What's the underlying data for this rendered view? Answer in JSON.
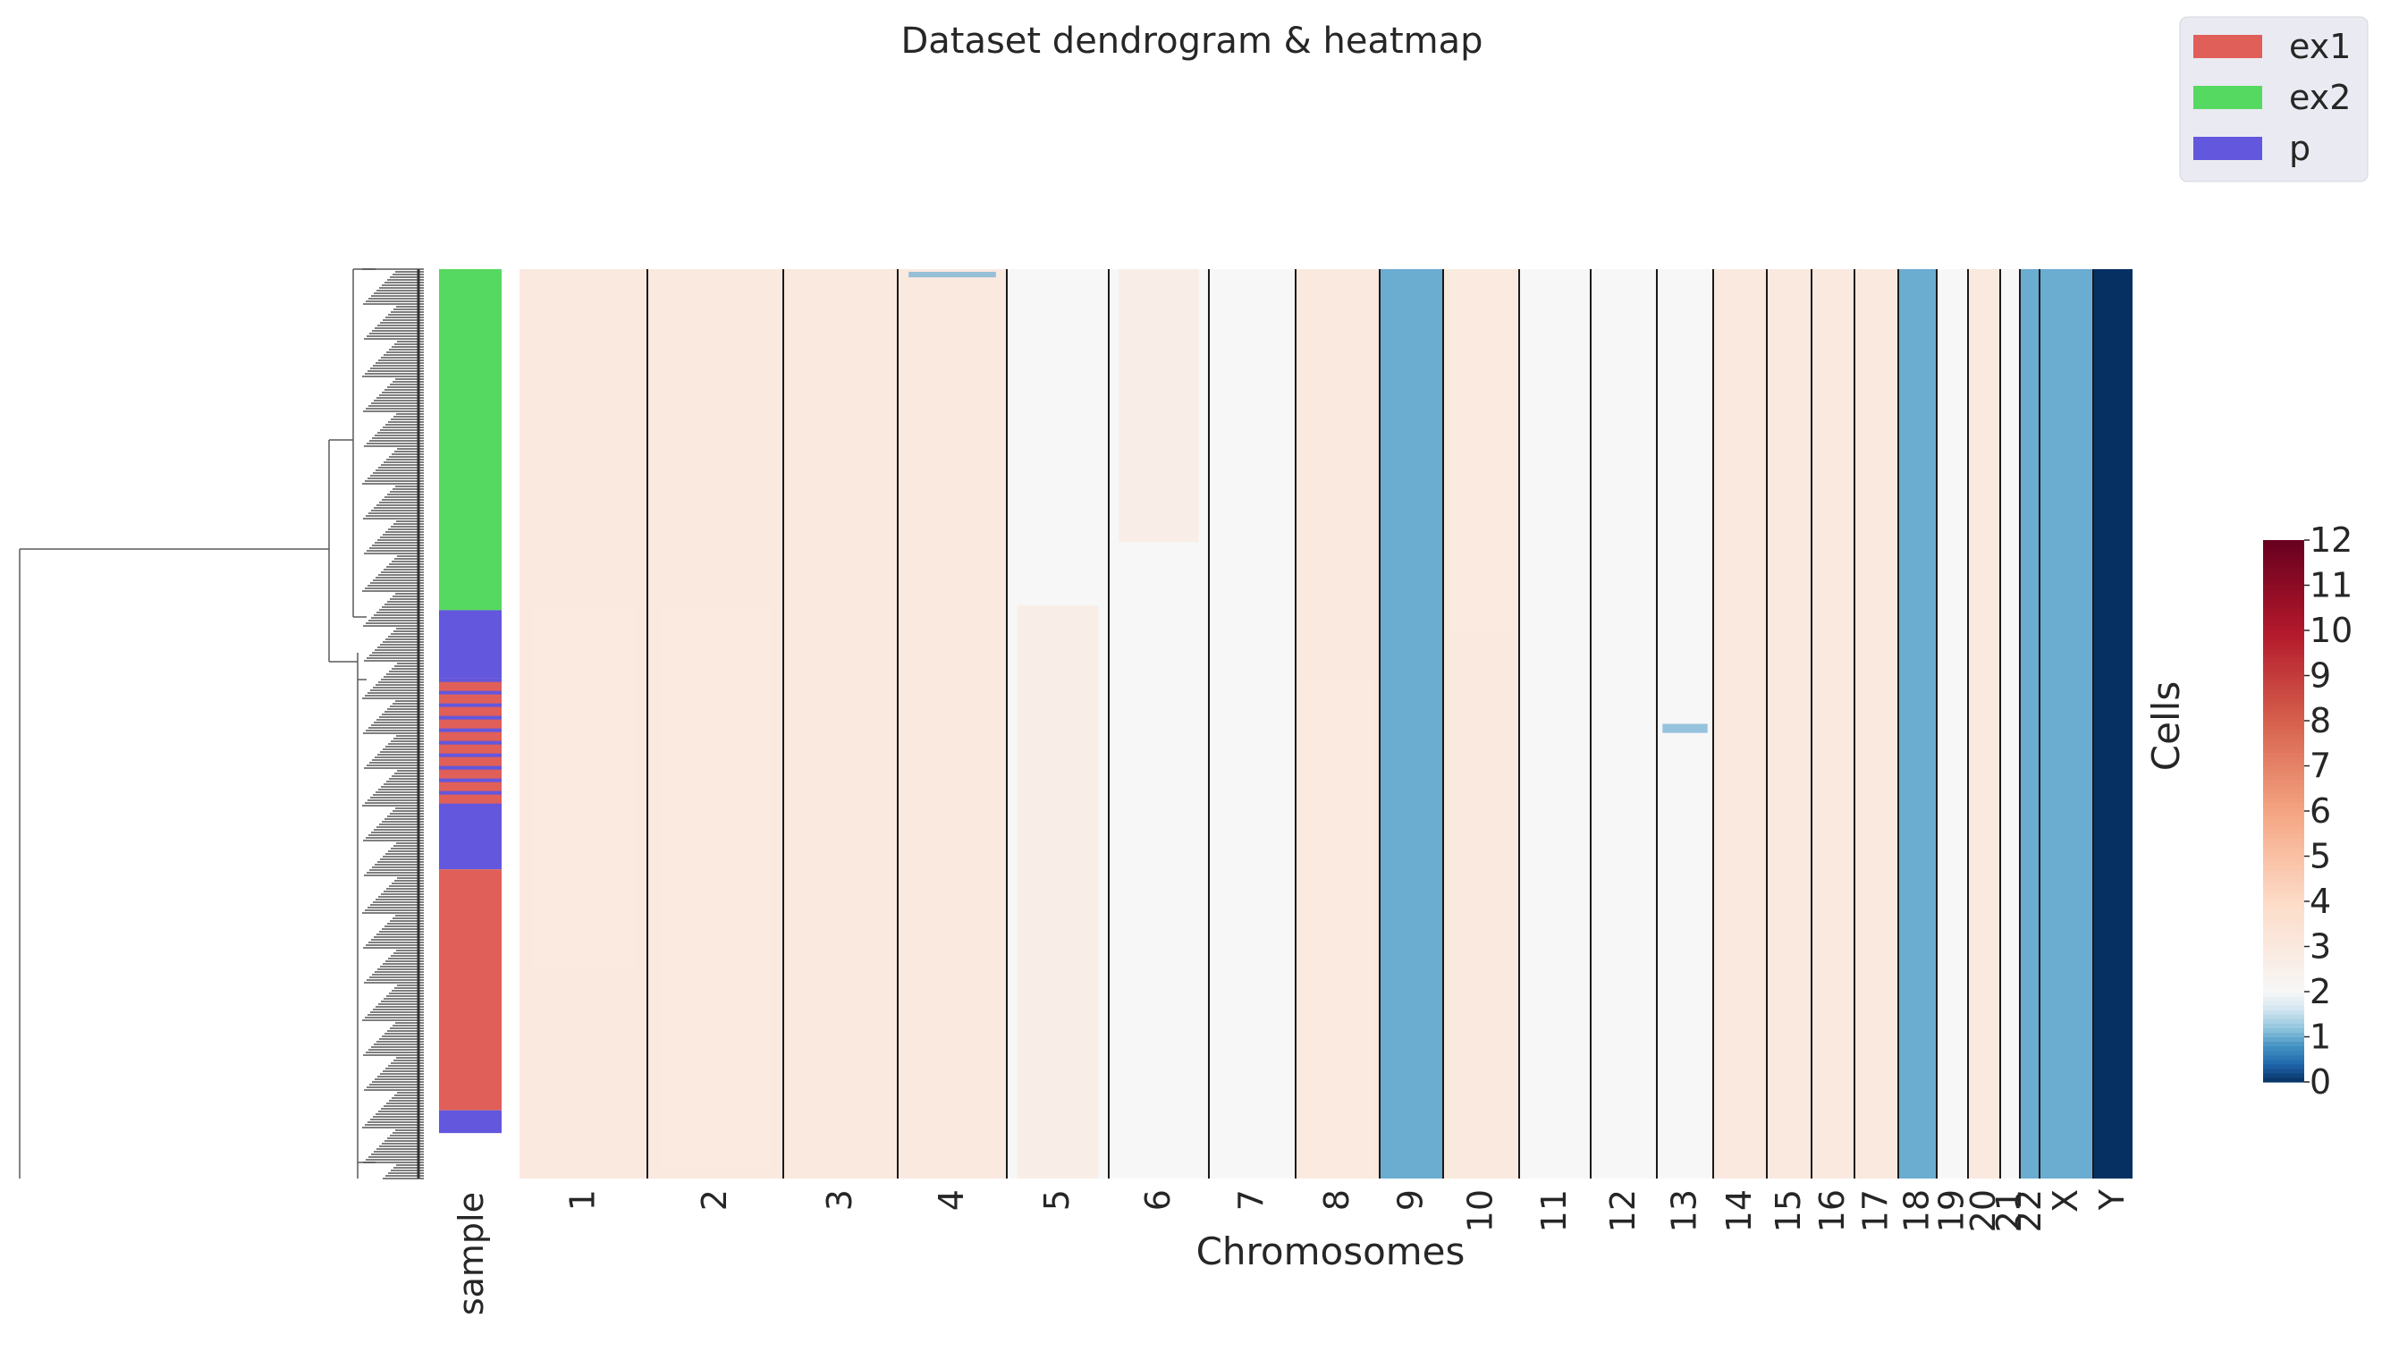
{
  "chart_data": {
    "type": "heatmap",
    "title": "Dataset dendrogram & heatmap",
    "xlabel": "Chromosomes",
    "ylabel": "Cells",
    "sample_label": "sample",
    "categories": [
      "1",
      "2",
      "3",
      "4",
      "5",
      "6",
      "7",
      "8",
      "9",
      "10",
      "11",
      "12",
      "13",
      "14",
      "15",
      "16",
      "17",
      "18",
      "19",
      "20",
      "21",
      "22",
      "X",
      "Y"
    ],
    "chromosome_default_copy_number": [
      3,
      3,
      3,
      3,
      2,
      2,
      2,
      3,
      1,
      3,
      2,
      2,
      2,
      3,
      3,
      3,
      3,
      1,
      2,
      3,
      2,
      1,
      1,
      0
    ],
    "legend": {
      "placement": "top-right",
      "entries": [
        {
          "name": "ex1",
          "color": "#e05f58"
        },
        {
          "name": "ex2",
          "color": "#56d960"
        },
        {
          "name": "p",
          "color": "#6257dd"
        }
      ]
    },
    "sample_blocks": [
      {
        "sample": "ex2",
        "fraction": 0.375
      },
      {
        "sample": "p",
        "fraction": 0.075
      },
      {
        "sample": "ex1",
        "fraction": 0.14
      },
      {
        "sample": "p",
        "fraction": 0.07
      },
      {
        "sample": "ex1",
        "fraction": 0.265
      },
      {
        "sample": "p",
        "fraction": 0.025
      }
    ],
    "colorbar": {
      "vmin": 0,
      "vmax": 12,
      "ticks": [
        "0",
        "1",
        "2",
        "3",
        "4",
        "5",
        "6",
        "7",
        "8",
        "9",
        "10",
        "11",
        "12"
      ],
      "colormap": "RdBu_r"
    }
  }
}
